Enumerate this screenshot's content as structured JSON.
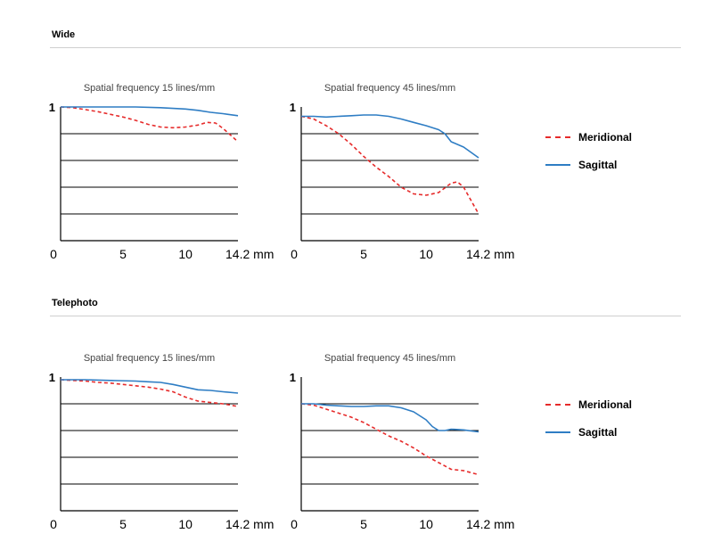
{
  "sections": [
    {
      "title": "Wide"
    },
    {
      "title": "Telephoto"
    }
  ],
  "legend": [
    {
      "name": "Meridional",
      "color": "#e62b2b",
      "dashed": true
    },
    {
      "name": "Sagittal",
      "color": "#2e7dc4",
      "dashed": false
    }
  ],
  "chart_data": [
    {
      "type": "line",
      "group": "Wide",
      "title": "Spatial frequency 15 lines/mm",
      "xticks": [
        "0",
        "5",
        "10",
        "14.2 mm"
      ],
      "xlim": [
        0,
        14.2
      ],
      "ylim": [
        0,
        1
      ],
      "yticks": [
        "1"
      ],
      "series": [
        {
          "name": "Meridional",
          "x": [
            0,
            1,
            2,
            3,
            4,
            5,
            6,
            7,
            8,
            9,
            10,
            11,
            11.7,
            12.4,
            13,
            14.2
          ],
          "y": [
            1,
            0.995,
            0.98,
            0.965,
            0.945,
            0.925,
            0.9,
            0.87,
            0.85,
            0.845,
            0.85,
            0.865,
            0.885,
            0.88,
            0.84,
            0.74
          ]
        },
        {
          "name": "Sagittal",
          "x": [
            0,
            2,
            4,
            5,
            6,
            8,
            10,
            11,
            12,
            13,
            14.2
          ],
          "y": [
            1,
            1,
            1,
            1,
            1,
            0.995,
            0.985,
            0.975,
            0.96,
            0.95,
            0.935
          ]
        }
      ]
    },
    {
      "type": "line",
      "group": "Wide",
      "title": "Spatial frequency 45 lines/mm",
      "xticks": [
        "0",
        "5",
        "10",
        "14.2 mm"
      ],
      "xlim": [
        0,
        14.2
      ],
      "ylim": [
        0,
        1
      ],
      "yticks": [
        "1"
      ],
      "series": [
        {
          "name": "Meridional",
          "x": [
            0,
            1,
            2,
            3,
            4,
            5,
            6,
            7,
            8,
            9,
            10,
            11,
            12,
            12.5,
            13,
            14.2
          ],
          "y": [
            0.93,
            0.91,
            0.86,
            0.8,
            0.72,
            0.63,
            0.55,
            0.48,
            0.4,
            0.35,
            0.34,
            0.36,
            0.43,
            0.44,
            0.4,
            0.2
          ]
        },
        {
          "name": "Sagittal",
          "x": [
            0,
            1,
            2,
            3,
            4,
            5,
            6,
            7,
            8,
            9,
            10,
            11,
            11.5,
            12,
            13,
            14.2
          ],
          "y": [
            0.93,
            0.93,
            0.925,
            0.93,
            0.935,
            0.94,
            0.94,
            0.93,
            0.91,
            0.885,
            0.86,
            0.83,
            0.8,
            0.74,
            0.7,
            0.62
          ]
        }
      ]
    },
    {
      "type": "line",
      "group": "Telephoto",
      "title": "Spatial frequency 15 lines/mm",
      "xticks": [
        "0",
        "5",
        "10",
        "14.2 mm"
      ],
      "xlim": [
        0,
        14.2
      ],
      "ylim": [
        0,
        1
      ],
      "yticks": [
        "1"
      ],
      "series": [
        {
          "name": "Meridional",
          "x": [
            0,
            1,
            2,
            3,
            4,
            5,
            6,
            7,
            8,
            9,
            10,
            11,
            12,
            13,
            14.2
          ],
          "y": [
            0.98,
            0.975,
            0.97,
            0.96,
            0.955,
            0.945,
            0.935,
            0.925,
            0.91,
            0.89,
            0.85,
            0.82,
            0.81,
            0.8,
            0.78
          ]
        },
        {
          "name": "Sagittal",
          "x": [
            0,
            2,
            4,
            6,
            7,
            8,
            9,
            10,
            11,
            12,
            13,
            14.2
          ],
          "y": [
            0.98,
            0.98,
            0.975,
            0.97,
            0.965,
            0.96,
            0.945,
            0.925,
            0.905,
            0.9,
            0.89,
            0.88
          ]
        }
      ]
    },
    {
      "type": "line",
      "group": "Telephoto",
      "title": "Spatial frequency 45 lines/mm",
      "xticks": [
        "0",
        "5",
        "10",
        "14.2 mm"
      ],
      "xlim": [
        0,
        14.2
      ],
      "ylim": [
        0,
        1
      ],
      "yticks": [
        "1"
      ],
      "series": [
        {
          "name": "Meridional",
          "x": [
            0,
            1,
            2,
            3,
            4,
            5,
            6,
            7,
            8,
            9,
            10,
            11,
            12,
            13,
            14.2
          ],
          "y": [
            0.8,
            0.79,
            0.76,
            0.73,
            0.7,
            0.66,
            0.61,
            0.56,
            0.52,
            0.47,
            0.41,
            0.36,
            0.31,
            0.3,
            0.27
          ]
        },
        {
          "name": "Sagittal",
          "x": [
            0,
            1,
            2,
            3,
            4,
            5,
            6,
            7,
            8,
            9,
            10,
            10.5,
            11,
            11.5,
            12,
            13,
            14.2
          ],
          "y": [
            0.8,
            0.8,
            0.79,
            0.785,
            0.78,
            0.78,
            0.785,
            0.785,
            0.77,
            0.74,
            0.68,
            0.63,
            0.6,
            0.6,
            0.61,
            0.605,
            0.59
          ]
        }
      ]
    }
  ]
}
